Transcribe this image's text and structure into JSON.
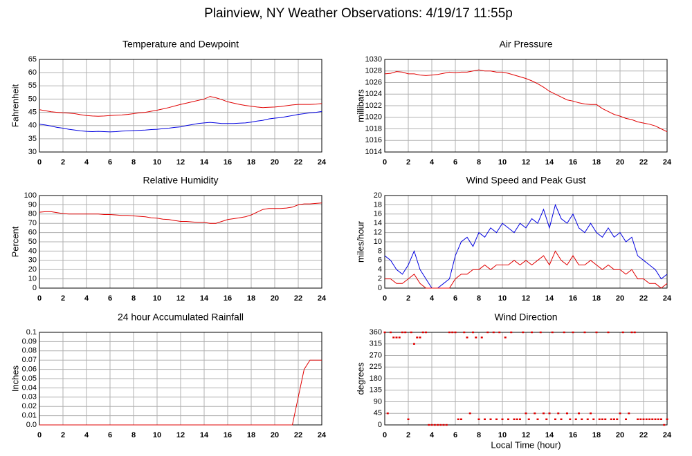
{
  "title": "Plainview, NY Weather Observations: 4/19/17 11:55p",
  "chart_data": [
    {
      "type": "line",
      "title": "Temperature and Dewpoint",
      "ylabel": "Fahrenheit",
      "x": [
        0,
        0.5,
        1,
        1.5,
        2,
        2.5,
        3,
        3.5,
        4,
        4.5,
        5,
        5.5,
        6,
        6.5,
        7,
        7.5,
        8,
        8.5,
        9,
        9.5,
        10,
        10.5,
        11,
        11.5,
        12,
        12.5,
        13,
        13.5,
        14,
        14.5,
        15,
        15.5,
        16,
        16.5,
        17,
        17.5,
        18,
        18.5,
        19,
        19.5,
        20,
        20.5,
        21,
        21.5,
        22,
        22.5,
        23,
        23.5,
        24
      ],
      "series": [
        {
          "color": "#e00000",
          "values": [
            46,
            45.6,
            45.2,
            45,
            44.8,
            44.7,
            44.5,
            44.1,
            43.8,
            43.6,
            43.5,
            43.6,
            43.8,
            43.9,
            44,
            44.2,
            44.5,
            44.8,
            45,
            45.4,
            45.8,
            46.3,
            46.8,
            47.4,
            48,
            48.5,
            49,
            49.5,
            50,
            51,
            50.5,
            49.8,
            49,
            48.5,
            48,
            47.6,
            47.3,
            47,
            46.8,
            46.9,
            47,
            47.2,
            47.5,
            47.8,
            48,
            48,
            48,
            48.1,
            48.3
          ]
        },
        {
          "color": "#0000e0",
          "values": [
            40.5,
            40.2,
            39.8,
            39.3,
            39,
            38.6,
            38.3,
            38,
            37.8,
            37.7,
            37.8,
            37.7,
            37.6,
            37.7,
            37.9,
            38,
            38.1,
            38.2,
            38.3,
            38.5,
            38.6,
            38.8,
            39,
            39.3,
            39.5,
            40,
            40.4,
            40.8,
            41,
            41.2,
            41,
            40.8,
            40.8,
            40.8,
            40.9,
            41,
            41.3,
            41.7,
            42,
            42.5,
            42.8,
            43,
            43.4,
            43.8,
            44.2,
            44.5,
            44.8,
            45,
            45.3
          ]
        }
      ],
      "xlim": [
        0,
        24
      ],
      "xticks": [
        0,
        2,
        4,
        6,
        8,
        10,
        12,
        14,
        16,
        18,
        20,
        22,
        24
      ],
      "ylim": [
        30,
        65
      ],
      "yticks": [
        30,
        35,
        40,
        45,
        50,
        55,
        60,
        65
      ],
      "grid": true
    },
    {
      "type": "line",
      "title": "Air Pressure",
      "ylabel": "millibars",
      "x": [
        0,
        0.5,
        1,
        1.5,
        2,
        2.5,
        3,
        3.5,
        4,
        4.5,
        5,
        5.5,
        6,
        6.5,
        7,
        7.5,
        8,
        8.5,
        9,
        9.5,
        10,
        10.5,
        11,
        11.5,
        12,
        12.5,
        13,
        13.5,
        14,
        14.5,
        15,
        15.5,
        16,
        16.5,
        17,
        17.5,
        18,
        18.5,
        19,
        19.5,
        20,
        20.5,
        21,
        21.5,
        22,
        22.5,
        23,
        23.5,
        24
      ],
      "series": [
        {
          "color": "#e00000",
          "values": [
            1027.5,
            1027.6,
            1027.9,
            1027.8,
            1027.5,
            1027.5,
            1027.3,
            1027.2,
            1027.3,
            1027.4,
            1027.6,
            1027.8,
            1027.7,
            1027.8,
            1027.8,
            1028,
            1028.2,
            1028,
            1028,
            1027.8,
            1027.8,
            1027.6,
            1027.3,
            1027,
            1026.7,
            1026.3,
            1025.8,
            1025.2,
            1024.5,
            1024,
            1023.5,
            1023,
            1022.8,
            1022.5,
            1022.3,
            1022.2,
            1022.2,
            1021.5,
            1021,
            1020.5,
            1020.2,
            1019.8,
            1019.6,
            1019.2,
            1019,
            1018.8,
            1018.5,
            1018,
            1017.5
          ]
        }
      ],
      "xlim": [
        0,
        24
      ],
      "xticks": [
        0,
        2,
        4,
        6,
        8,
        10,
        12,
        14,
        16,
        18,
        20,
        22,
        24
      ],
      "ylim": [
        1014,
        1030
      ],
      "yticks": [
        1014,
        1016,
        1018,
        1020,
        1022,
        1024,
        1026,
        1028,
        1030
      ],
      "grid": true
    },
    {
      "type": "line",
      "title": "Relative Humidity",
      "ylabel": "Percent",
      "x": [
        0,
        0.5,
        1,
        1.5,
        2,
        2.5,
        3,
        3.5,
        4,
        4.5,
        5,
        5.5,
        6,
        6.5,
        7,
        7.5,
        8,
        8.5,
        9,
        9.5,
        10,
        10.5,
        11,
        11.5,
        12,
        12.5,
        13,
        13.5,
        14,
        14.5,
        15,
        15.5,
        16,
        16.5,
        17,
        17.5,
        18,
        18.5,
        19,
        19.5,
        20,
        20.5,
        21,
        21.5,
        22,
        22.5,
        23,
        23.5,
        24
      ],
      "series": [
        {
          "color": "#e00000",
          "values": [
            82,
            82.5,
            82.5,
            81.5,
            80.5,
            80,
            80,
            80,
            80,
            80,
            80,
            79.5,
            79.5,
            79,
            78.5,
            78.5,
            78,
            77.5,
            77,
            76,
            75.5,
            74.5,
            74,
            73,
            72,
            72,
            71.5,
            71,
            71,
            70,
            70,
            72,
            74,
            75,
            76,
            77,
            79,
            82,
            85,
            86,
            86,
            86,
            86.5,
            87.5,
            90,
            91,
            91,
            91.5,
            92
          ]
        }
      ],
      "xlim": [
        0,
        24
      ],
      "xticks": [
        0,
        2,
        4,
        6,
        8,
        10,
        12,
        14,
        16,
        18,
        20,
        22,
        24
      ],
      "ylim": [
        0,
        100
      ],
      "yticks": [
        0,
        10,
        20,
        30,
        40,
        50,
        60,
        70,
        80,
        90,
        100
      ],
      "grid": true
    },
    {
      "type": "line",
      "title": "Wind Speed and Peak Gust",
      "ylabel": "miles/hour",
      "x": [
        0,
        0.5,
        1,
        1.5,
        2,
        2.5,
        3,
        3.5,
        4,
        4.5,
        5,
        5.5,
        6,
        6.5,
        7,
        7.5,
        8,
        8.5,
        9,
        9.5,
        10,
        10.5,
        11,
        11.5,
        12,
        12.5,
        13,
        13.5,
        14,
        14.5,
        15,
        15.5,
        16,
        16.5,
        17,
        17.5,
        18,
        18.5,
        19,
        19.5,
        20,
        20.5,
        21,
        21.5,
        22,
        22.5,
        23,
        23.5,
        24
      ],
      "series": [
        {
          "color": "#0000e0",
          "values": [
            7,
            6,
            4,
            3,
            5,
            8,
            4,
            2,
            0,
            0,
            1,
            2,
            7,
            10,
            11,
            9,
            12,
            11,
            13,
            12,
            14,
            13,
            12,
            14,
            13,
            15,
            14,
            17,
            13,
            18,
            15,
            14,
            16,
            13,
            12,
            14,
            12,
            11,
            13,
            11,
            12,
            10,
            11,
            7,
            6,
            5,
            4,
            2,
            3
          ]
        },
        {
          "color": "#e00000",
          "values": [
            2,
            2,
            1,
            1,
            2,
            3,
            1,
            0,
            0,
            0,
            0,
            0,
            2,
            3,
            3,
            4,
            4,
            5,
            4,
            5,
            5,
            5,
            6,
            5,
            6,
            5,
            6,
            7,
            5,
            8,
            6,
            5,
            7,
            5,
            5,
            6,
            5,
            4,
            5,
            4,
            4,
            3,
            4,
            2,
            2,
            1,
            1,
            0,
            1
          ]
        }
      ],
      "xlim": [
        0,
        24
      ],
      "xticks": [
        0,
        2,
        4,
        6,
        8,
        10,
        12,
        14,
        16,
        18,
        20,
        22,
        24
      ],
      "ylim": [
        0,
        20
      ],
      "yticks": [
        0,
        2,
        4,
        6,
        8,
        10,
        12,
        14,
        16,
        18,
        20
      ],
      "grid": true
    },
    {
      "type": "line",
      "title": "24 hour Accumulated Rainfall",
      "ylabel": "Inches",
      "x": [
        0,
        0.5,
        1,
        1.5,
        2,
        2.5,
        3,
        3.5,
        4,
        4.5,
        5,
        5.5,
        6,
        6.5,
        7,
        7.5,
        8,
        8.5,
        9,
        9.5,
        10,
        10.5,
        11,
        11.5,
        12,
        12.5,
        13,
        13.5,
        14,
        14.5,
        15,
        15.5,
        16,
        16.5,
        17,
        17.5,
        18,
        18.5,
        19,
        19.5,
        20,
        20.5,
        21,
        21.5,
        22,
        22.5,
        23,
        23.5,
        24
      ],
      "series": [
        {
          "color": "#e00000",
          "values": [
            0,
            0,
            0,
            0,
            0,
            0,
            0,
            0,
            0,
            0,
            0,
            0,
            0,
            0,
            0,
            0,
            0,
            0,
            0,
            0,
            0,
            0,
            0,
            0,
            0,
            0,
            0,
            0,
            0,
            0,
            0,
            0,
            0,
            0,
            0,
            0,
            0,
            0,
            0,
            0,
            0,
            0,
            0,
            0,
            0.03,
            0.06,
            0.07,
            0.07,
            0.07
          ]
        }
      ],
      "xlim": [
        0,
        24
      ],
      "xticks": [
        0,
        2,
        4,
        6,
        8,
        10,
        12,
        14,
        16,
        18,
        20,
        22,
        24
      ],
      "ylim": [
        0,
        0.1
      ],
      "yticks": [
        {
          "value": 0,
          "label": "0.0"
        },
        0.01,
        0.02,
        0.03,
        0.04,
        0.05,
        0.06,
        0.07,
        0.08,
        0.09,
        0.1
      ],
      "grid": true
    },
    {
      "type": "scatter",
      "title": "Wind Direction",
      "ylabel": "degrees",
      "xlabel": "Local Time (hour)",
      "color": "#e00000",
      "x": [
        0,
        0.25,
        0.5,
        0.75,
        1,
        1.25,
        1.5,
        1.75,
        2,
        2.25,
        2.5,
        2.75,
        3,
        3.25,
        3.5,
        3.75,
        4,
        4.25,
        4.5,
        4.75,
        5,
        5.25,
        5.5,
        5.75,
        6,
        6.25,
        6.5,
        6.75,
        7,
        7.25,
        7.5,
        7.75,
        8,
        8.25,
        8.5,
        8.75,
        9,
        9.25,
        9.5,
        9.75,
        10,
        10.25,
        10.5,
        10.75,
        11,
        11.25,
        11.5,
        11.75,
        12,
        12.25,
        12.5,
        12.75,
        13,
        13.25,
        13.5,
        13.75,
        14,
        14.25,
        14.5,
        14.75,
        15,
        15.25,
        15.5,
        15.75,
        16,
        16.25,
        16.5,
        16.75,
        17,
        17.25,
        17.5,
        17.75,
        18,
        18.25,
        18.5,
        18.75,
        19,
        19.25,
        19.5,
        19.75,
        20,
        20.25,
        20.5,
        20.75,
        21,
        21.25,
        21.5,
        21.75,
        22,
        22.25,
        22.5,
        22.75,
        23,
        23.25,
        23.5,
        23.75,
        24
      ],
      "values": [
        360,
        45,
        360,
        340,
        340,
        340,
        360,
        360,
        22,
        360,
        315,
        340,
        340,
        360,
        360,
        0,
        0,
        0,
        0,
        0,
        0,
        0,
        360,
        360,
        360,
        22,
        22,
        360,
        340,
        45,
        360,
        340,
        22,
        340,
        22,
        360,
        22,
        360,
        22,
        360,
        22,
        340,
        22,
        360,
        22,
        22,
        22,
        360,
        45,
        22,
        360,
        45,
        22,
        360,
        45,
        22,
        45,
        360,
        22,
        45,
        22,
        360,
        45,
        22,
        360,
        22,
        45,
        22,
        360,
        22,
        45,
        22,
        360,
        22,
        22,
        22,
        360,
        22,
        22,
        22,
        45,
        360,
        22,
        45,
        360,
        360,
        22,
        22,
        22,
        22,
        22,
        22,
        22,
        22,
        22,
        0,
        22
      ],
      "xlim": [
        0,
        24
      ],
      "xticks": [
        0,
        2,
        4,
        6,
        8,
        10,
        12,
        14,
        16,
        18,
        20,
        22,
        24
      ],
      "ylim": [
        0,
        360
      ],
      "yticks": [
        0,
        45,
        90,
        135,
        180,
        225,
        270,
        315,
        360
      ],
      "grid": true
    }
  ]
}
